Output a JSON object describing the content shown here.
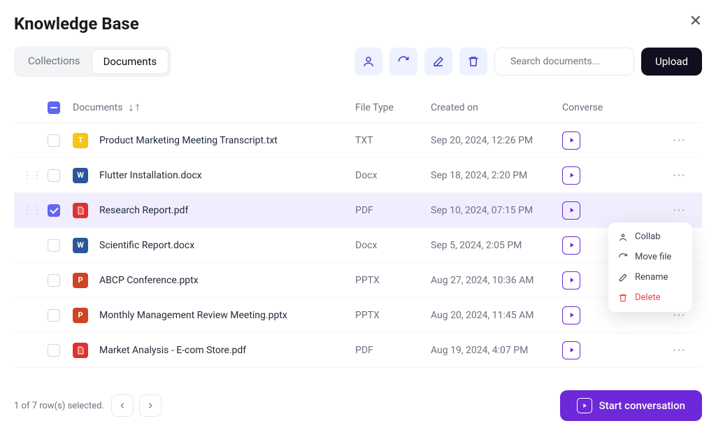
{
  "header": {
    "title": "Knowledge Base"
  },
  "tabs": {
    "collections": "Collections",
    "documents": "Documents",
    "active": "documents"
  },
  "search": {
    "placeholder": "Search documents..."
  },
  "upload_label": "Upload",
  "columns": {
    "documents": "Documents",
    "filetype": "File Type",
    "created": "Created on",
    "converse": "Converse"
  },
  "icons": {
    "types": {
      "TXT": {
        "bg": "#f5c518",
        "glyph": "T"
      },
      "Docx": {
        "bg": "#2b579a",
        "glyph": "W"
      },
      "PDF": {
        "bg": "#e03131",
        "glyph": ""
      },
      "PPTX": {
        "bg": "#d04423",
        "glyph": "P"
      }
    }
  },
  "rows": [
    {
      "name": "Product Marketing Meeting Transcript.txt",
      "type": "TXT",
      "date": "Sep 20, 2024, 12:26 PM",
      "selected": false,
      "showDrag": false
    },
    {
      "name": "Flutter Installation.docx",
      "type": "Docx",
      "date": "Sep 18, 2024, 2:20 PM",
      "selected": false,
      "showDrag": true
    },
    {
      "name": "Research Report.pdf",
      "type": "PDF",
      "date": "Sep 10, 2024, 07:15 PM",
      "selected": true,
      "showDrag": true
    },
    {
      "name": "Scientific Report.docx",
      "type": "Docx",
      "date": "Sep 5, 2024, 2:05 PM",
      "selected": false,
      "showDrag": false
    },
    {
      "name": "ABCP Conference.pptx",
      "type": "PPTX",
      "date": "Aug 27, 2024, 10:36 AM",
      "selected": false,
      "showDrag": false
    },
    {
      "name": "Monthly Management Review Meeting.pptx",
      "type": "PPTX",
      "date": "Aug 20, 2024, 11:45 AM",
      "selected": false,
      "showDrag": false
    },
    {
      "name": "Market Analysis - E-com Store.pdf",
      "type": "PDF",
      "date": "Aug 19, 2024, 4:07 PM",
      "selected": false,
      "showDrag": false
    }
  ],
  "context_menu": {
    "items": [
      {
        "key": "collab",
        "label": "Collab",
        "danger": false
      },
      {
        "key": "move",
        "label": "Move file",
        "danger": false
      },
      {
        "key": "rename",
        "label": "Rename",
        "danger": false
      },
      {
        "key": "delete",
        "label": "Delete",
        "danger": true
      }
    ]
  },
  "footer": {
    "selection_text": "1 of 7 row(s) selected.",
    "start_label": "Start conversation"
  },
  "colors": {
    "accent": "#6d28d9",
    "selected_row_bg": "#f0eefe"
  }
}
